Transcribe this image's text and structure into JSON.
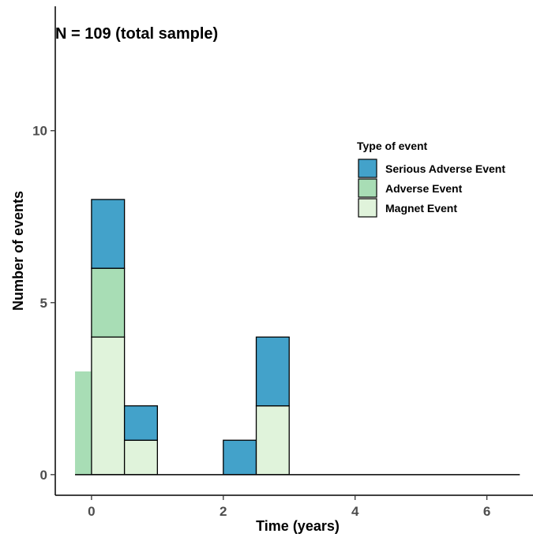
{
  "chart_data": {
    "type": "bar",
    "stacked": true,
    "annotation": "N = 109 (total sample)",
    "xlabel": "Time (years)",
    "ylabel": "Number of events",
    "xlim": [
      -0.55,
      6.7
    ],
    "ylim": [
      -0.6,
      13.8
    ],
    "x_ticks": [
      0,
      2,
      4,
      6
    ],
    "y_ticks": [
      0,
      5,
      10
    ],
    "bin_width": 0.5,
    "grid": false,
    "legend": {
      "title": "Type of event",
      "position": "right",
      "entries": [
        "Serious Adverse Event",
        "Adverse Event",
        "Magnet Event"
      ]
    },
    "colors": {
      "Serious Adverse Event": "#43a2ca",
      "Adverse Event": "#a8ddb5",
      "Magnet Event": "#e0f3db"
    },
    "stack_order": [
      "Magnet Event",
      "Adverse Event",
      "Serious Adverse Event"
    ],
    "baseline_extent": [
      -0.25,
      6.5
    ],
    "bars": [
      {
        "x0": -0.25,
        "x1": 0.0,
        "counts": {
          "Magnet Event": 0,
          "Adverse Event": 3,
          "Serious Adverse Event": 0
        },
        "outline": false
      },
      {
        "x0": 0.0,
        "x1": 0.5,
        "counts": {
          "Magnet Event": 4,
          "Adverse Event": 2,
          "Serious Adverse Event": 2
        },
        "outline": true
      },
      {
        "x0": 0.5,
        "x1": 1.0,
        "counts": {
          "Magnet Event": 1,
          "Adverse Event": 0,
          "Serious Adverse Event": 1
        },
        "outline": true
      },
      {
        "x0": 2.0,
        "x1": 2.5,
        "counts": {
          "Magnet Event": 0,
          "Adverse Event": 0,
          "Serious Adverse Event": 1
        },
        "outline": true
      },
      {
        "x0": 2.5,
        "x1": 3.0,
        "counts": {
          "Magnet Event": 2,
          "Adverse Event": 0,
          "Serious Adverse Event": 2
        },
        "outline": true
      }
    ]
  }
}
